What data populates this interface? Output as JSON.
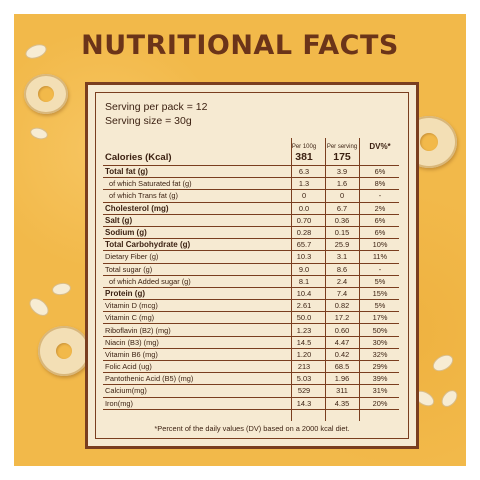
{
  "title": "NUTRITIONAL FACTS",
  "serving": {
    "per_pack": "Serving per pack = 12",
    "size": "Serving size = 30g"
  },
  "columns": {
    "per100": "Per 100g",
    "per_serving": "Per serving",
    "dv": "DV%*"
  },
  "calories": {
    "label": "Calories (Kcal)",
    "per100": "381",
    "per_serving": "175"
  },
  "rows": [
    {
      "name": "Total fat (g)",
      "per100": "6.3",
      "per_serving": "3.9",
      "dv": "6%"
    },
    {
      "name": "of which Saturated fat (g)",
      "per100": "1.3",
      "per_serving": "1.6",
      "dv": "8%"
    },
    {
      "name": "of which Trans fat (g)",
      "per100": "0",
      "per_serving": "0",
      "dv": "-"
    },
    {
      "name": "Cholesterol (mg)",
      "per100": "0.0",
      "per_serving": "6.7",
      "dv": "2%"
    },
    {
      "name": "Salt (g)",
      "per100": "0.70",
      "per_serving": "0.36",
      "dv": "6%"
    },
    {
      "name": "Sodium (g)",
      "per100": "0.28",
      "per_serving": "0.15",
      "dv": "6%"
    },
    {
      "name": "Total Carbohydrate (g)",
      "per100": "65.7",
      "per_serving": "25.9",
      "dv": "10%"
    },
    {
      "name": "Dietary Fiber (g)",
      "per100": "10.3",
      "per_serving": "3.1",
      "dv": "11%"
    },
    {
      "name": "Total sugar (g)",
      "per100": "9.0",
      "per_serving": "8.6",
      "dv": "-"
    },
    {
      "name": "of which Added sugar (g)",
      "per100": "8.1",
      "per_serving": "2.4",
      "dv": "5%"
    },
    {
      "name": "Protein (g)",
      "per100": "10.4",
      "per_serving": "7.4",
      "dv": "15%"
    },
    {
      "name": "Vitamin D (mcg)",
      "per100": "2.61",
      "per_serving": "0.82",
      "dv": "5%"
    },
    {
      "name": "Vitamin C (mg)",
      "per100": "50.0",
      "per_serving": "17.2",
      "dv": "17%"
    },
    {
      "name": "Riboflavin (B2) (mg)",
      "per100": "1.23",
      "per_serving": "0.60",
      "dv": "50%"
    },
    {
      "name": "Niacin (B3) (mg)",
      "per100": "14.5",
      "per_serving": "4.47",
      "dv": "30%"
    },
    {
      "name": "Vitamin B6 (mg)",
      "per100": "1.20",
      "per_serving": "0.42",
      "dv": "32%"
    },
    {
      "name": "Folic Acid (ug)",
      "per100": "213",
      "per_serving": "68.5",
      "dv": "29%"
    },
    {
      "name": "Pantothenic Acid (B5) (mg)",
      "per100": "5.03",
      "per_serving": "1.96",
      "dv": "39%"
    },
    {
      "name": "Calcium(mg)",
      "per100": "529",
      "per_serving": "311",
      "dv": "31%"
    },
    {
      "name": "Iron(mg)",
      "per100": "14.3",
      "per_serving": "4.35",
      "dv": "20%"
    }
  ],
  "footnote": "*Percent of the daily values (DV) based on a 2000 kcal diet."
}
